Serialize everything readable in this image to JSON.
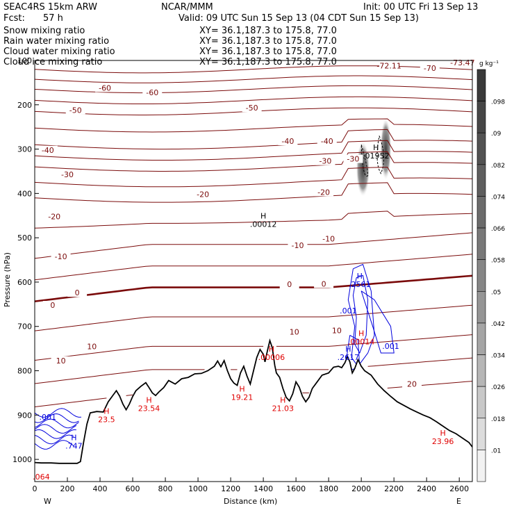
{
  "header": {
    "model": "SEAC4RS 15km ARW",
    "org": "NCAR/MMM",
    "init": "Init: 00 UTC Fri 13 Sep 13",
    "fcst_label": "Fcst:",
    "fcst_value": "57 h",
    "valid": "Valid: 09 UTC Sun 15 Sep 13 (04 CDT Sun 15 Sep 13)"
  },
  "fields": [
    {
      "name": "Snow mixing ratio",
      "xy": "XY=  36.1,187.3 to 175.8, 77.0",
      "color": "#000000"
    },
    {
      "name": "Rain water mixing ratio",
      "xy": "XY=  36.1,187.3 to 175.8, 77.0",
      "color": "#e00000"
    },
    {
      "name": "Cloud water mixing ratio",
      "xy": "XY=  36.1,187.3 to 175.8, 77.0",
      "color": "#0000dd"
    },
    {
      "name": "Cloud ice mixing ratio",
      "xy": "XY=  36.1,187.3 to 175.8, 77.0",
      "color": "#000000"
    }
  ],
  "chart_data": {
    "type": "cross-section",
    "xlabel": "Distance (km)",
    "ylabel": "Pressure (hPa)",
    "xlim": [
      0,
      2680
    ],
    "ylim": [
      1050,
      100
    ],
    "x_ticks": [
      0,
      200,
      400,
      600,
      800,
      1000,
      1200,
      1400,
      1600,
      1800,
      2000,
      2200,
      2400,
      2600
    ],
    "y_ticks": [
      100,
      200,
      300,
      400,
      500,
      600,
      700,
      800,
      900,
      1000
    ],
    "x_end_labels": {
      "left": "W",
      "right": "E"
    },
    "colorbar": {
      "unit": "g kg⁻¹",
      "labels": [
        ".098",
        ".09",
        ".082",
        ".074",
        ".066",
        ".058",
        ".05",
        ".042",
        ".034",
        ".026",
        ".018",
        ".01"
      ],
      "colors": [
        "#3a3a3a",
        "#464646",
        "#525252",
        "#5e5e5e",
        "#6b6b6b",
        "#787878",
        "#868686",
        "#959595",
        "#a5a5a5",
        "#b6b6b6",
        "#c8c8c8",
        "#dcdcdc",
        "#f2f2f2"
      ]
    },
    "temperature_contours_C": [
      -70,
      -60,
      -50,
      -40,
      -30,
      -20,
      -10,
      0,
      10,
      20
    ],
    "temperature_labels": [
      {
        "text": "-72.11",
        "x": 2170,
        "p": 115
      },
      {
        "text": "-73.47",
        "x": 2620,
        "p": 108
      },
      {
        "text": "-70",
        "x": 2420,
        "p": 120
      },
      {
        "text": "-60",
        "x": 430,
        "p": 165
      },
      {
        "text": "-60",
        "x": 720,
        "p": 175
      },
      {
        "text": "-50",
        "x": 250,
        "p": 215
      },
      {
        "text": "-50",
        "x": 1330,
        "p": 210
      },
      {
        "text": "-40",
        "x": 80,
        "p": 305
      },
      {
        "text": "-40",
        "x": 1550,
        "p": 285
      },
      {
        "text": "-40",
        "x": 1790,
        "p": 285
      },
      {
        "text": "-30",
        "x": 200,
        "p": 360
      },
      {
        "text": "-30",
        "x": 1780,
        "p": 330
      },
      {
        "text": "-30",
        "x": 1950,
        "p": 325
      },
      {
        "text": "-20",
        "x": 120,
        "p": 455
      },
      {
        "text": "-20",
        "x": 1030,
        "p": 405
      },
      {
        "text": "-20",
        "x": 1770,
        "p": 400
      },
      {
        "text": "-10",
        "x": 160,
        "p": 545
      },
      {
        "text": "-10",
        "x": 1610,
        "p": 520
      },
      {
        "text": "-10",
        "x": 1800,
        "p": 505
      },
      {
        "text": "0",
        "x": 110,
        "p": 655
      },
      {
        "text": "0",
        "x": 260,
        "p": 627
      },
      {
        "text": "0",
        "x": 1560,
        "p": 608
      },
      {
        "text": "0",
        "x": 1770,
        "p": 607
      },
      {
        "text": "10",
        "x": 160,
        "p": 780
      },
      {
        "text": "10",
        "x": 350,
        "p": 748
      },
      {
        "text": "10",
        "x": 1590,
        "p": 715
      },
      {
        "text": "10",
        "x": 1850,
        "p": 712
      },
      {
        "text": "20",
        "x": 2310,
        "p": 833
      }
    ],
    "extrema_labels": [
      {
        "mark": "H",
        "value": ".01952",
        "x": 2090,
        "p": 305,
        "color": "#000000"
      },
      {
        "mark": "H",
        "value": ".00012",
        "x": 1400,
        "p": 460,
        "color": "#000000"
      },
      {
        "mark": "H",
        "value": ".2561",
        "x": 1990,
        "p": 595,
        "color": "#0000dd"
      },
      {
        "mark": "",
        "value": ".001",
        "x": 1920,
        "p": 655,
        "color": "#0000dd"
      },
      {
        "mark": "",
        "value": ".001",
        "x": 2180,
        "p": 735,
        "color": "#0000dd"
      },
      {
        "mark": "H",
        "value": ".2617",
        "x": 1920,
        "p": 760,
        "color": "#0000dd"
      },
      {
        "mark": "H",
        "value": ".00014",
        "x": 2000,
        "p": 725,
        "color": "#e00000"
      },
      {
        "mark": "H",
        "value": ".00006",
        "x": 1450,
        "p": 760,
        "color": "#e00000"
      },
      {
        "mark": "H",
        "value": "23.54",
        "x": 700,
        "p": 875,
        "color": "#e00000"
      },
      {
        "mark": "H",
        "value": "19.21",
        "x": 1270,
        "p": 850,
        "color": "#e00000"
      },
      {
        "mark": "H",
        "value": "21.03",
        "x": 1520,
        "p": 875,
        "color": "#e00000"
      },
      {
        "mark": "H",
        "value": "23.5",
        "x": 440,
        "p": 900,
        "color": "#e00000"
      },
      {
        "mark": "H",
        "value": "23.96",
        "x": 2500,
        "p": 950,
        "color": "#e00000"
      },
      {
        "mark": "H",
        "value": ".747",
        "x": 240,
        "p": 960,
        "color": "#0000dd"
      },
      {
        "mark": "",
        "value": ".001",
        "x": 80,
        "p": 895,
        "color": "#0000dd"
      },
      {
        "mark": "",
        "value": ".064",
        "x": 40,
        "p": 1030,
        "color": "#e00000"
      }
    ],
    "terrain": [
      [
        0,
        1007
      ],
      [
        40,
        1008
      ],
      [
        100,
        1008
      ],
      [
        150,
        1009
      ],
      [
        200,
        1009
      ],
      [
        260,
        1009
      ],
      [
        280,
        1005
      ],
      [
        300,
        960
      ],
      [
        320,
        920
      ],
      [
        340,
        895
      ],
      [
        380,
        892
      ],
      [
        420,
        893
      ],
      [
        450,
        870
      ],
      [
        480,
        855
      ],
      [
        500,
        845
      ],
      [
        520,
        857
      ],
      [
        540,
        875
      ],
      [
        560,
        888
      ],
      [
        580,
        875
      ],
      [
        600,
        858
      ],
      [
        620,
        845
      ],
      [
        650,
        835
      ],
      [
        680,
        827
      ],
      [
        700,
        838
      ],
      [
        720,
        850
      ],
      [
        740,
        856
      ],
      [
        760,
        848
      ],
      [
        790,
        838
      ],
      [
        820,
        822
      ],
      [
        860,
        830
      ],
      [
        900,
        818
      ],
      [
        940,
        815
      ],
      [
        980,
        807
      ],
      [
        1020,
        806
      ],
      [
        1060,
        800
      ],
      [
        1100,
        790
      ],
      [
        1120,
        778
      ],
      [
        1140,
        791
      ],
      [
        1160,
        777
      ],
      [
        1180,
        800
      ],
      [
        1200,
        818
      ],
      [
        1220,
        828
      ],
      [
        1240,
        833
      ],
      [
        1260,
        805
      ],
      [
        1280,
        790
      ],
      [
        1300,
        812
      ],
      [
        1320,
        830
      ],
      [
        1340,
        800
      ],
      [
        1360,
        770
      ],
      [
        1380,
        752
      ],
      [
        1400,
        763
      ],
      [
        1410,
        780
      ],
      [
        1425,
        755
      ],
      [
        1440,
        732
      ],
      [
        1455,
        748
      ],
      [
        1470,
        788
      ],
      [
        1480,
        805
      ],
      [
        1500,
        815
      ],
      [
        1520,
        840
      ],
      [
        1540,
        860
      ],
      [
        1560,
        868
      ],
      [
        1580,
        852
      ],
      [
        1600,
        825
      ],
      [
        1620,
        837
      ],
      [
        1640,
        858
      ],
      [
        1660,
        870
      ],
      [
        1680,
        860
      ],
      [
        1700,
        840
      ],
      [
        1720,
        830
      ],
      [
        1760,
        810
      ],
      [
        1800,
        805
      ],
      [
        1830,
        792
      ],
      [
        1860,
        790
      ],
      [
        1880,
        793
      ],
      [
        1900,
        782
      ],
      [
        1915,
        768
      ],
      [
        1930,
        780
      ],
      [
        1945,
        805
      ],
      [
        1960,
        795
      ],
      [
        1980,
        775
      ],
      [
        2000,
        790
      ],
      [
        2020,
        800
      ],
      [
        2060,
        810
      ],
      [
        2100,
        830
      ],
      [
        2140,
        845
      ],
      [
        2180,
        858
      ],
      [
        2220,
        870
      ],
      [
        2260,
        878
      ],
      [
        2300,
        886
      ],
      [
        2340,
        893
      ],
      [
        2380,
        900
      ],
      [
        2420,
        906
      ],
      [
        2460,
        915
      ],
      [
        2500,
        925
      ],
      [
        2540,
        935
      ],
      [
        2580,
        942
      ],
      [
        2620,
        952
      ],
      [
        2660,
        962
      ],
      [
        2680,
        972
      ]
    ]
  }
}
